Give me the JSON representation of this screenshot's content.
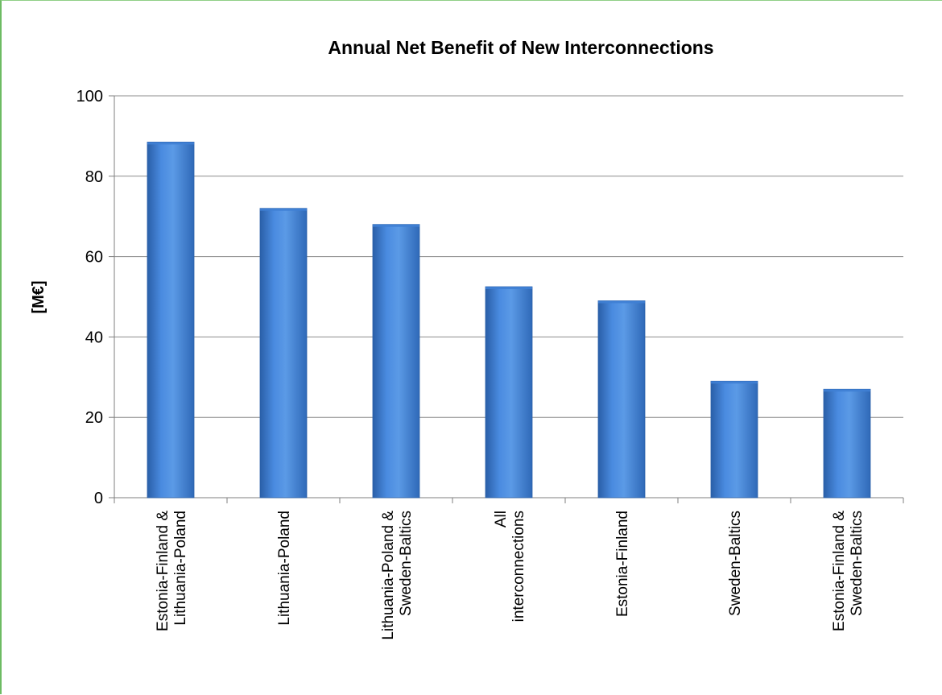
{
  "chart_data": {
    "type": "bar",
    "title": "Annual Net Benefit of New Interconnections",
    "xlabel": "",
    "ylabel": "[M€]",
    "ylim": [
      0,
      100
    ],
    "yticks": [
      0,
      20,
      40,
      60,
      80,
      100
    ],
    "grid": true,
    "categories": [
      [
        "Estonia-Finland &",
        "Lithuania-Poland"
      ],
      [
        "Lithuania-Poland"
      ],
      [
        "Lithuania-Poland &",
        "Sweden-Baltics"
      ],
      [
        "All",
        "interconnections"
      ],
      [
        "Estonia-Finland"
      ],
      [
        "Sweden-Baltics"
      ],
      [
        "Estonia-Finland &",
        "Sweden-Baltics"
      ]
    ],
    "values": [
      88.5,
      72,
      68,
      52.5,
      49,
      29,
      27
    ],
    "colors": {
      "bar_light": "#5b9ae6",
      "bar_mid": "#3f7fd4",
      "bar_dark": "#2a5fa8",
      "grid": "#8c8c8c",
      "axis": "#7f7f7f",
      "frame": "#6dbb63"
    }
  }
}
